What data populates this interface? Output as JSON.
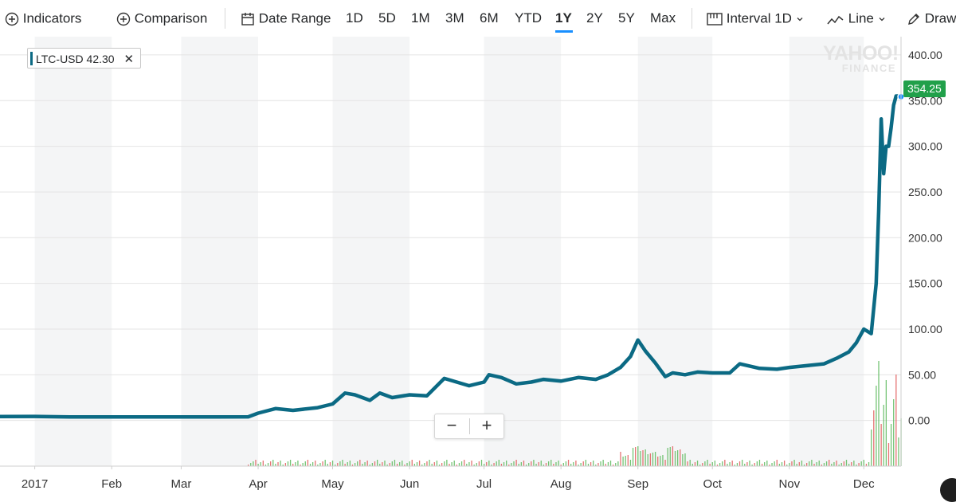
{
  "toolbar": {
    "indicators": "Indicators",
    "comparison": "Comparison",
    "date_range": "Date Range",
    "ranges": [
      "1D",
      "5D",
      "1M",
      "3M",
      "6M",
      "YTD",
      "1Y",
      "2Y",
      "5Y",
      "Max"
    ],
    "active_range": "1Y",
    "interval_label": "Interval",
    "interval_value": "1D",
    "chart_type": "Line",
    "draw": "Draw"
  },
  "legend": {
    "symbol": "LTC-USD",
    "value": "42.30",
    "color": "#0b6a84"
  },
  "watermark": {
    "line1": "YAHOO!",
    "line2": "FINANCE"
  },
  "zoom": {
    "minus": "−",
    "plus": "+"
  },
  "last_price": {
    "label": "354.25",
    "color": "#21a04a"
  },
  "icons": [
    "plus-circle-icon",
    "calendar-icon",
    "interval-icon",
    "line-chart-icon",
    "pencil-icon",
    "chevron-down-icon",
    "close-icon"
  ],
  "chart_data": {
    "type": "line",
    "symbol": "LTC-USD",
    "x_tick_labels": [
      "2017",
      "Feb",
      "Mar",
      "Apr",
      "May",
      "Jun",
      "Jul",
      "Aug",
      "Sep",
      "Oct",
      "Nov",
      "Dec"
    ],
    "xlim": [
      "2016-12-18",
      "2017-12-16"
    ],
    "ylim": [
      -50,
      420
    ],
    "y_ticks": [
      0,
      50,
      100,
      150,
      200,
      250,
      300,
      350,
      400
    ],
    "y_tick_labels": [
      "0.00",
      "50.00",
      "100.00",
      "150.00",
      "200.00",
      "250.00",
      "300.00",
      "350.00",
      "400.00"
    ],
    "line_color": "#0b6a84",
    "grid": true,
    "series": [
      {
        "x": [
          "2016-12-18",
          "2017-01-01",
          "2017-01-15",
          "2017-02-01",
          "2017-02-15",
          "2017-03-01",
          "2017-03-15",
          "2017-03-28",
          "2017-04-01",
          "2017-04-08",
          "2017-04-15",
          "2017-04-25",
          "2017-05-01",
          "2017-05-06",
          "2017-05-10",
          "2017-05-16",
          "2017-05-20",
          "2017-05-25",
          "2017-06-01",
          "2017-06-08",
          "2017-06-15",
          "2017-06-20",
          "2017-06-25",
          "2017-07-01",
          "2017-07-03",
          "2017-07-08",
          "2017-07-14",
          "2017-07-20",
          "2017-07-25",
          "2017-08-01",
          "2017-08-08",
          "2017-08-15",
          "2017-08-20",
          "2017-08-25",
          "2017-08-29",
          "2017-09-01",
          "2017-09-04",
          "2017-09-08",
          "2017-09-12",
          "2017-09-15",
          "2017-09-20",
          "2017-09-25",
          "2017-10-01",
          "2017-10-08",
          "2017-10-12",
          "2017-10-20",
          "2017-10-27",
          "2017-11-01",
          "2017-11-08",
          "2017-11-15",
          "2017-11-20",
          "2017-11-25",
          "2017-11-28",
          "2017-12-01",
          "2017-12-04",
          "2017-12-06",
          "2017-12-07",
          "2017-12-08",
          "2017-12-09",
          "2017-12-10",
          "2017-12-11",
          "2017-12-12",
          "2017-12-13",
          "2017-12-14",
          "2017-12-15",
          "2017-12-16"
        ],
        "y": [
          4.3,
          4.4,
          3.9,
          3.8,
          3.8,
          3.8,
          3.9,
          4.0,
          8,
          13,
          11,
          14,
          18,
          30,
          28,
          22,
          30,
          25,
          28,
          27,
          46,
          42,
          38,
          42,
          50,
          47,
          40,
          42,
          45,
          43,
          47,
          45,
          50,
          58,
          70,
          88,
          76,
          63,
          48,
          52,
          50,
          53,
          52,
          52,
          62,
          57,
          56,
          58,
          60,
          62,
          68,
          75,
          85,
          100,
          95,
          150,
          230,
          330,
          270,
          300,
          300,
          320,
          345,
          355,
          355,
          354.25
        ]
      }
    ]
  }
}
